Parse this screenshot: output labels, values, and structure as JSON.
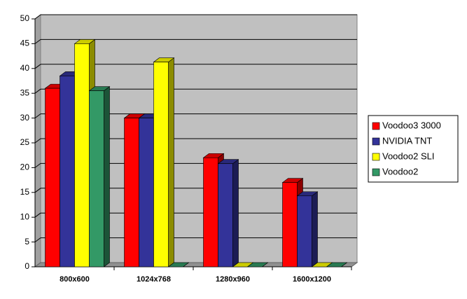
{
  "chart_data": {
    "type": "bar3d",
    "categories": [
      "800x600",
      "1024x768",
      "1280x960",
      "1600x1200"
    ],
    "series": [
      {
        "name": "Voodoo3 3000",
        "color": "#ff0000",
        "values": [
          36,
          30,
          22,
          17
        ]
      },
      {
        "name": "NVIDIA TNT",
        "color": "#333399",
        "values": [
          38.5,
          30,
          20.8,
          14.3
        ]
      },
      {
        "name": "Voodoo2 SLI",
        "color": "#ffff00",
        "values": [
          45,
          41.3,
          0,
          0
        ]
      },
      {
        "name": "Voodoo2",
        "color": "#339966",
        "values": [
          35.5,
          0,
          0,
          0
        ]
      }
    ],
    "ylim": [
      0,
      50
    ],
    "yticks": [
      0,
      5,
      10,
      15,
      20,
      25,
      30,
      35,
      40,
      45,
      50
    ],
    "grid": true,
    "legend": "right"
  }
}
